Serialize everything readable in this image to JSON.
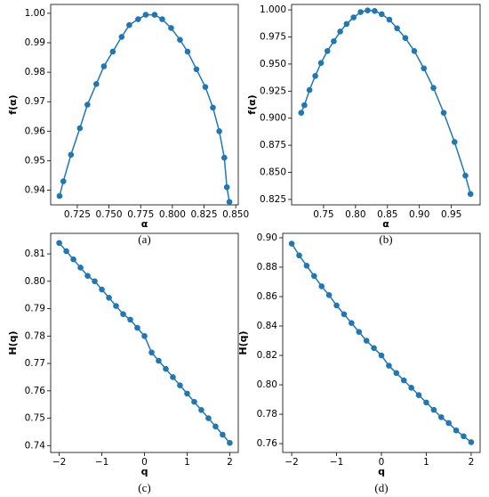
{
  "chart_data": [
    {
      "type": "line",
      "caption": "(a)",
      "xlabel": "α",
      "ylabel": "f(α)",
      "color": "#1f77b4",
      "x": [
        0.711,
        0.714,
        0.72,
        0.727,
        0.733,
        0.74,
        0.746,
        0.753,
        0.76,
        0.766,
        0.773,
        0.779,
        0.786,
        0.792,
        0.799,
        0.806,
        0.812,
        0.819,
        0.826,
        0.832,
        0.837,
        0.841,
        0.843,
        0.845
      ],
      "values": [
        0.938,
        0.943,
        0.952,
        0.961,
        0.969,
        0.976,
        0.982,
        0.987,
        0.992,
        0.996,
        0.998,
        0.9995,
        0.9995,
        0.998,
        0.995,
        0.991,
        0.987,
        0.981,
        0.975,
        0.968,
        0.96,
        0.951,
        0.941,
        0.936
      ],
      "xlim": [
        0.704,
        0.852
      ],
      "ylim": [
        0.935,
        1.003
      ],
      "xticks": [
        0.725,
        {
          "value": 0.75,
          "label": "0.750"
        },
        0.775,
        {
          "value": 0.8,
          "label": "0.800"
        },
        0.825,
        {
          "value": 0.85,
          "label": "0.850"
        }
      ],
      "yticks": [
        0.94,
        0.95,
        0.96,
        0.97,
        0.98,
        0.99,
        {
          "value": 1,
          "label": "1.00"
        }
      ]
    },
    {
      "type": "line",
      "caption": "(b)",
      "xlabel": "α",
      "ylabel": "f(α)",
      "color": "#1f77b4",
      "x": [
        0.715,
        0.72,
        0.728,
        0.737,
        0.746,
        0.756,
        0.766,
        0.776,
        0.786,
        0.797,
        0.808,
        0.819,
        0.83,
        0.841,
        0.853,
        0.865,
        0.878,
        0.892,
        0.907,
        0.922,
        0.938,
        0.955,
        0.972,
        0.98
      ],
      "values": [
        0.905,
        0.912,
        0.926,
        0.939,
        0.951,
        0.962,
        0.971,
        0.98,
        0.987,
        0.993,
        0.998,
        0.9995,
        0.999,
        0.996,
        0.991,
        0.983,
        0.974,
        0.962,
        0.946,
        0.928,
        0.905,
        0.878,
        0.847,
        0.83
      ],
      "xlim": [
        0.7,
        0.995
      ],
      "ylim": [
        0.82,
        1.005
      ],
      "xticks": [
        0.75,
        {
          "value": 0.8,
          "label": "0.80"
        },
        0.85,
        {
          "value": 0.9,
          "label": "0.90"
        },
        0.95
      ],
      "yticks": [
        0.825,
        {
          "value": 0.85,
          "label": "0.850"
        },
        0.875,
        {
          "value": 0.9,
          "label": "0.900"
        },
        0.925,
        {
          "value": 0.95,
          "label": "0.950"
        },
        0.975,
        {
          "value": 1,
          "label": "1.000"
        }
      ]
    },
    {
      "type": "line",
      "caption": "(c)",
      "xlabel": "q",
      "ylabel": "H(q)",
      "color": "#1f77b4",
      "x": [
        -2,
        -1.833,
        -1.667,
        -1.5,
        -1.333,
        -1.167,
        -1,
        -0.833,
        -0.667,
        -0.5,
        -0.333,
        -0.167,
        0,
        0.167,
        0.333,
        0.5,
        0.667,
        0.833,
        1,
        1.167,
        1.333,
        1.5,
        1.667,
        1.833,
        2
      ],
      "values": [
        0.814,
        0.811,
        0.808,
        0.805,
        0.802,
        0.8,
        0.797,
        0.794,
        0.791,
        0.788,
        0.786,
        0.783,
        0.78,
        0.774,
        0.771,
        0.768,
        0.765,
        0.762,
        0.759,
        0.756,
        0.753,
        0.75,
        0.747,
        0.744,
        0.741
      ],
      "xlim": [
        -2.2,
        2.2
      ],
      "ylim": [
        0.7375,
        0.8175
      ],
      "xticks": [
        {
          "value": -2,
          "label": "−2"
        },
        {
          "value": -1,
          "label": "−1"
        },
        0,
        1,
        2
      ],
      "yticks": [
        0.74,
        0.75,
        0.76,
        0.77,
        0.78,
        0.79,
        {
          "value": 0.8,
          "label": "0.80"
        },
        0.81
      ]
    },
    {
      "type": "line",
      "caption": "(d)",
      "xlabel": "q",
      "ylabel": "H(q)",
      "color": "#1f77b4",
      "x": [
        -2,
        -1.833,
        -1.667,
        -1.5,
        -1.333,
        -1.167,
        -1,
        -0.833,
        -0.667,
        -0.5,
        -0.333,
        -0.167,
        0,
        0.167,
        0.333,
        0.5,
        0.667,
        0.833,
        1,
        1.167,
        1.333,
        1.5,
        1.667,
        1.833,
        2
      ],
      "values": [
        0.896,
        0.888,
        0.881,
        0.874,
        0.867,
        0.861,
        0.854,
        0.848,
        0.842,
        0.836,
        0.83,
        0.825,
        0.82,
        0.813,
        0.808,
        0.803,
        0.798,
        0.793,
        0.788,
        0.783,
        0.778,
        0.774,
        0.769,
        0.765,
        0.761
      ],
      "xlim": [
        -2.2,
        2.2
      ],
      "ylim": [
        0.754,
        0.903
      ],
      "xticks": [
        {
          "value": -2,
          "label": "−2"
        },
        {
          "value": -1,
          "label": "−1"
        },
        0,
        1,
        2
      ],
      "yticks": [
        0.76,
        0.78,
        {
          "value": 0.8,
          "label": "0.80"
        },
        0.82,
        0.84,
        0.86,
        0.88,
        {
          "value": 0.9,
          "label": "0.90"
        }
      ]
    }
  ]
}
